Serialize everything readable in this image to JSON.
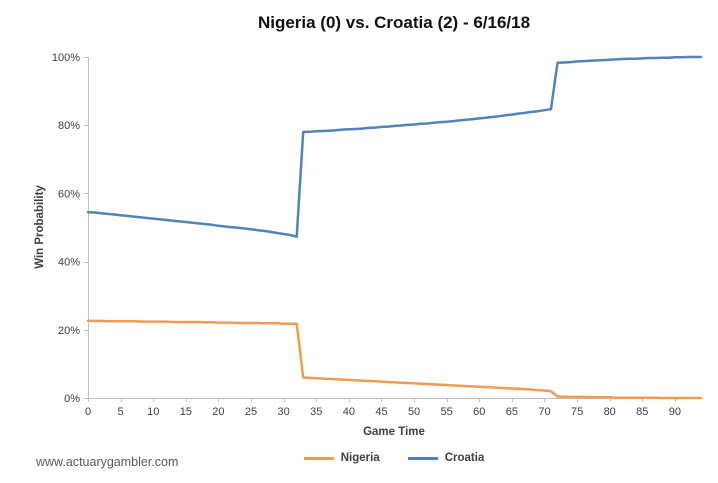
{
  "page": {
    "watermark": "www.actuarygambler.com",
    "background": "#FFFFFF"
  },
  "chart_data": {
    "type": "line",
    "title": "Nigeria (0) vs. Croatia (2) - 6/16/18",
    "xlabel": "Game Time",
    "ylabel": "Win Probability",
    "xlim": [
      0,
      94
    ],
    "ylim": [
      0,
      100
    ],
    "grid": false,
    "legend_position": "bottom",
    "x_tick_values": [
      0,
      5,
      10,
      15,
      20,
      25,
      30,
      35,
      40,
      45,
      50,
      55,
      60,
      65,
      70,
      75,
      80,
      85,
      90
    ],
    "x_tick_labels": [
      "0",
      "5",
      "10",
      "15",
      "20",
      "25",
      "30",
      "35",
      "40",
      "45",
      "50",
      "55",
      "60",
      "65",
      "70",
      "75",
      "80",
      "85",
      "90"
    ],
    "y_tick_values": [
      0,
      20,
      40,
      60,
      80,
      100
    ],
    "y_tick_labels": [
      "0%",
      "20%",
      "40%",
      "60%",
      "80%",
      "100%"
    ],
    "axis_color": "#BFBFBF",
    "tick_label_color": "#404040",
    "x": [
      0,
      1,
      2,
      3,
      4,
      5,
      6,
      7,
      8,
      9,
      10,
      11,
      12,
      13,
      14,
      15,
      16,
      17,
      18,
      19,
      20,
      21,
      22,
      23,
      24,
      25,
      26,
      27,
      28,
      29,
      30,
      31,
      32,
      33,
      34,
      35,
      36,
      37,
      38,
      39,
      40,
      41,
      42,
      43,
      44,
      45,
      46,
      47,
      48,
      49,
      50,
      51,
      52,
      53,
      54,
      55,
      56,
      57,
      58,
      59,
      60,
      61,
      62,
      63,
      64,
      65,
      66,
      67,
      68,
      69,
      70,
      71,
      72,
      73,
      74,
      75,
      76,
      77,
      78,
      79,
      80,
      81,
      82,
      83,
      84,
      85,
      86,
      87,
      88,
      89,
      90,
      91,
      92,
      93,
      94
    ],
    "series": [
      {
        "name": "Nigeria",
        "color": "#F09B54",
        "values": [
          22.6,
          22.6,
          22.6,
          22.5,
          22.5,
          22.5,
          22.5,
          22.5,
          22.4,
          22.4,
          22.4,
          22.4,
          22.4,
          22.3,
          22.3,
          22.3,
          22.3,
          22.3,
          22.2,
          22.2,
          22.1,
          22.1,
          22.1,
          22.0,
          22.0,
          22.0,
          22.0,
          21.9,
          21.9,
          21.9,
          21.8,
          21.8,
          21.8,
          6.0,
          5.9,
          5.8,
          5.7,
          5.6,
          5.5,
          5.4,
          5.3,
          5.2,
          5.1,
          5.0,
          4.9,
          4.8,
          4.7,
          4.6,
          4.5,
          4.4,
          4.3,
          4.2,
          4.1,
          4.0,
          3.9,
          3.8,
          3.7,
          3.6,
          3.5,
          3.4,
          3.3,
          3.2,
          3.1,
          3.0,
          2.9,
          2.8,
          2.7,
          2.6,
          2.5,
          2.3,
          2.2,
          2.0,
          0.4,
          0.4,
          0.3,
          0.3,
          0.3,
          0.2,
          0.2,
          0.2,
          0.2,
          0.1,
          0.1,
          0.1,
          0.1,
          0.1,
          0.1,
          0.1,
          0.0,
          0.0,
          0.0,
          0.0,
          0.0,
          0.0,
          0.0
        ]
      },
      {
        "name": "Croatia",
        "color": "#5284BA",
        "values": [
          54.5,
          54.4,
          54.2,
          54.0,
          53.8,
          53.6,
          53.4,
          53.2,
          53.0,
          52.8,
          52.6,
          52.4,
          52.2,
          52.0,
          51.8,
          51.6,
          51.4,
          51.2,
          51.0,
          50.8,
          50.5,
          50.3,
          50.1,
          49.9,
          49.7,
          49.5,
          49.2,
          49.0,
          48.7,
          48.4,
          48.1,
          47.8,
          47.3,
          78.0,
          78.1,
          78.2,
          78.3,
          78.4,
          78.5,
          78.7,
          78.8,
          78.9,
          79.0,
          79.2,
          79.3,
          79.5,
          79.6,
          79.8,
          79.9,
          80.1,
          80.2,
          80.4,
          80.5,
          80.7,
          80.9,
          81.0,
          81.2,
          81.4,
          81.6,
          81.8,
          82.0,
          82.2,
          82.4,
          82.6,
          82.9,
          83.1,
          83.4,
          83.6,
          83.9,
          84.1,
          84.4,
          84.7,
          98.3,
          98.4,
          98.5,
          98.7,
          98.8,
          98.9,
          99.0,
          99.1,
          99.2,
          99.3,
          99.4,
          99.5,
          99.5,
          99.6,
          99.7,
          99.7,
          99.8,
          99.8,
          99.9,
          99.9,
          100.0,
          100.0,
          100.0
        ]
      }
    ]
  }
}
